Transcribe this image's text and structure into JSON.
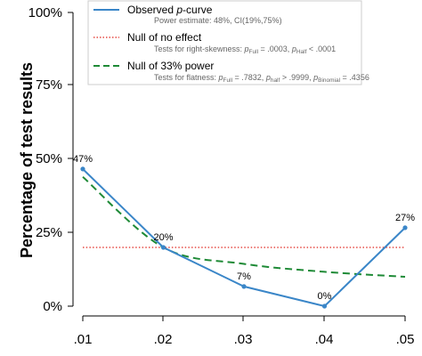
{
  "chart_data": {
    "type": "line",
    "x": [
      0.01,
      0.02,
      0.03,
      0.04,
      0.05
    ],
    "x_tick_labels": [
      ".01",
      ".02",
      ".03",
      ".04",
      ".05"
    ],
    "xlabel": "",
    "ylabel": "Percentage of test results",
    "ylim": [
      0,
      100
    ],
    "y_ticks": [
      0,
      25,
      50,
      75,
      100
    ],
    "y_tick_labels": [
      "0%",
      "25%",
      "50%",
      "75%",
      "100%"
    ],
    "grid": false,
    "legend_position": "top-right",
    "series": [
      {
        "name": "Observed p-curve",
        "name_prefix": "Observed ",
        "name_italic": "p",
        "name_suffix": "-curve",
        "subtitle": "Power estimate: 48%, CI(19%,75%)",
        "values": [
          46.7,
          20.0,
          6.7,
          0.0,
          26.7
        ],
        "data_labels": [
          "47%",
          "20%",
          "7%",
          "0%",
          "27%"
        ],
        "color": "#3a86c8",
        "style": "solid"
      },
      {
        "name": "Null of no effect",
        "subtitle_parts": [
          "Tests for right-skewness: ",
          "p",
          "Full",
          " = .0003,  ",
          "p",
          "Half",
          "  < .0001"
        ],
        "values": [
          20,
          20,
          20,
          20,
          20
        ],
        "color": "#e0261e",
        "style": "dotted"
      },
      {
        "name": "Null of 33% power",
        "subtitle_parts": [
          "Tests for flatness:  ",
          "p",
          "Full",
          " = .7832,  ",
          "p",
          "half",
          "  > .9999,  ",
          "p",
          "Binomial",
          " = .4356"
        ],
        "values": [
          44.0,
          20.0,
          14.4,
          11.7,
          10.0
        ],
        "color": "#1e8a36",
        "style": "dashed"
      }
    ]
  }
}
